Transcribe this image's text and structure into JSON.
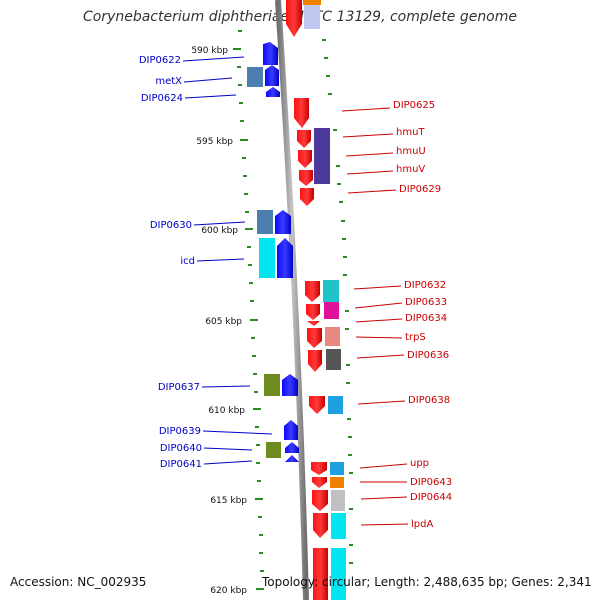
{
  "title": "Corynebacterium diphtheriae NCTC 13129, complete genome",
  "accession": "Accession: NC_002935",
  "topology": "Topology: circular; Length: 2,488,635 bp; Genes: 2,341",
  "colors": {
    "backbone": "#9a9a9a",
    "tick": "#2e8b22",
    "left_label": "#0000cc",
    "right_label": "#cc0000",
    "forward_arrow": "#0000ff",
    "reverse_arrow": "#ff0000"
  },
  "ticks": [
    "590 kbp",
    "595 kbp",
    "600 kbp",
    "605 kbp",
    "610 kbp",
    "615 kbp",
    "620 kbp"
  ],
  "left_labels": [
    "DIP0622",
    "metX",
    "DIP0624",
    "DIP0630",
    "icd",
    "DIP0637",
    "DIP0639",
    "DIP0640",
    "DIP0641"
  ],
  "right_labels": [
    "DIP0625",
    "hmuT",
    "hmuU",
    "hmuV",
    "DIP0629",
    "DIP0632",
    "DIP0633",
    "DIP0634",
    "trpS",
    "DIP0636",
    "DIP0638",
    "upp",
    "DIP0643",
    "DIP0644",
    "lpdA"
  ],
  "cog_colors": {
    "steelblue": "#4a7fb0",
    "cyan": "#00e5f0",
    "purple": "#4b3a9c",
    "teal": "#22c3c8",
    "magenta": "#e0109a",
    "salmon": "#e88880",
    "darkgray": "#555555",
    "olive": "#6e8c20",
    "skyblue": "#1fa0e0",
    "orange": "#f08000",
    "lightgray": "#c0c0c0",
    "lavender": "#c0c8f0"
  }
}
